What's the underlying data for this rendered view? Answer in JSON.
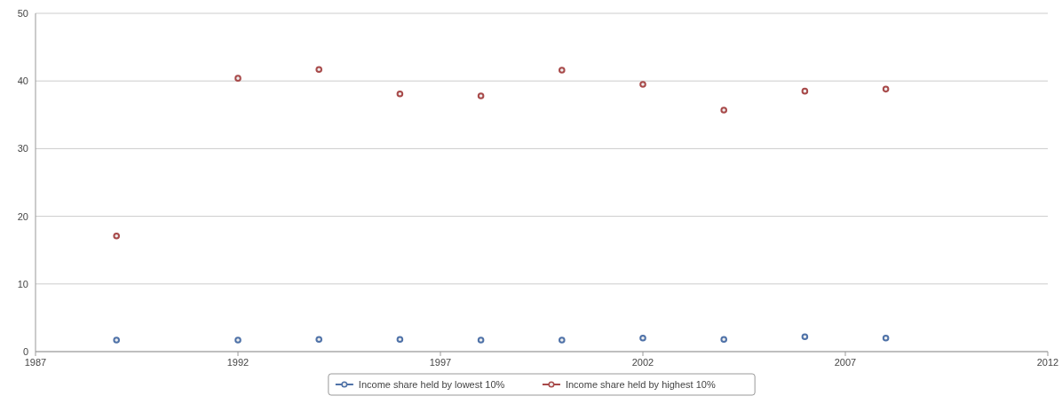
{
  "chart_data": {
    "type": "scatter",
    "x": [
      1989,
      1992,
      1994,
      1996,
      1998,
      2000,
      2002,
      2004,
      2006,
      2008
    ],
    "series": [
      {
        "name": "Income share held by lowest 10%",
        "color": "#4f72a8",
        "values": [
          1.7,
          1.7,
          1.8,
          1.8,
          1.7,
          1.7,
          2.0,
          1.8,
          2.2,
          2.0
        ]
      },
      {
        "name": "Income share held by highest 10%",
        "color": "#a84a4a",
        "values": [
          17.1,
          40.4,
          41.7,
          38.1,
          37.8,
          41.6,
          39.5,
          35.7,
          38.5,
          38.8
        ]
      }
    ],
    "xlim": [
      1987,
      2012
    ],
    "xticks": [
      1987,
      1992,
      1997,
      2002,
      2007,
      2012
    ],
    "ylim": [
      0,
      50
    ],
    "yticks": [
      0,
      10,
      20,
      30,
      40,
      50
    ],
    "grid": "y",
    "legend": "bottom",
    "marker": "circle"
  }
}
